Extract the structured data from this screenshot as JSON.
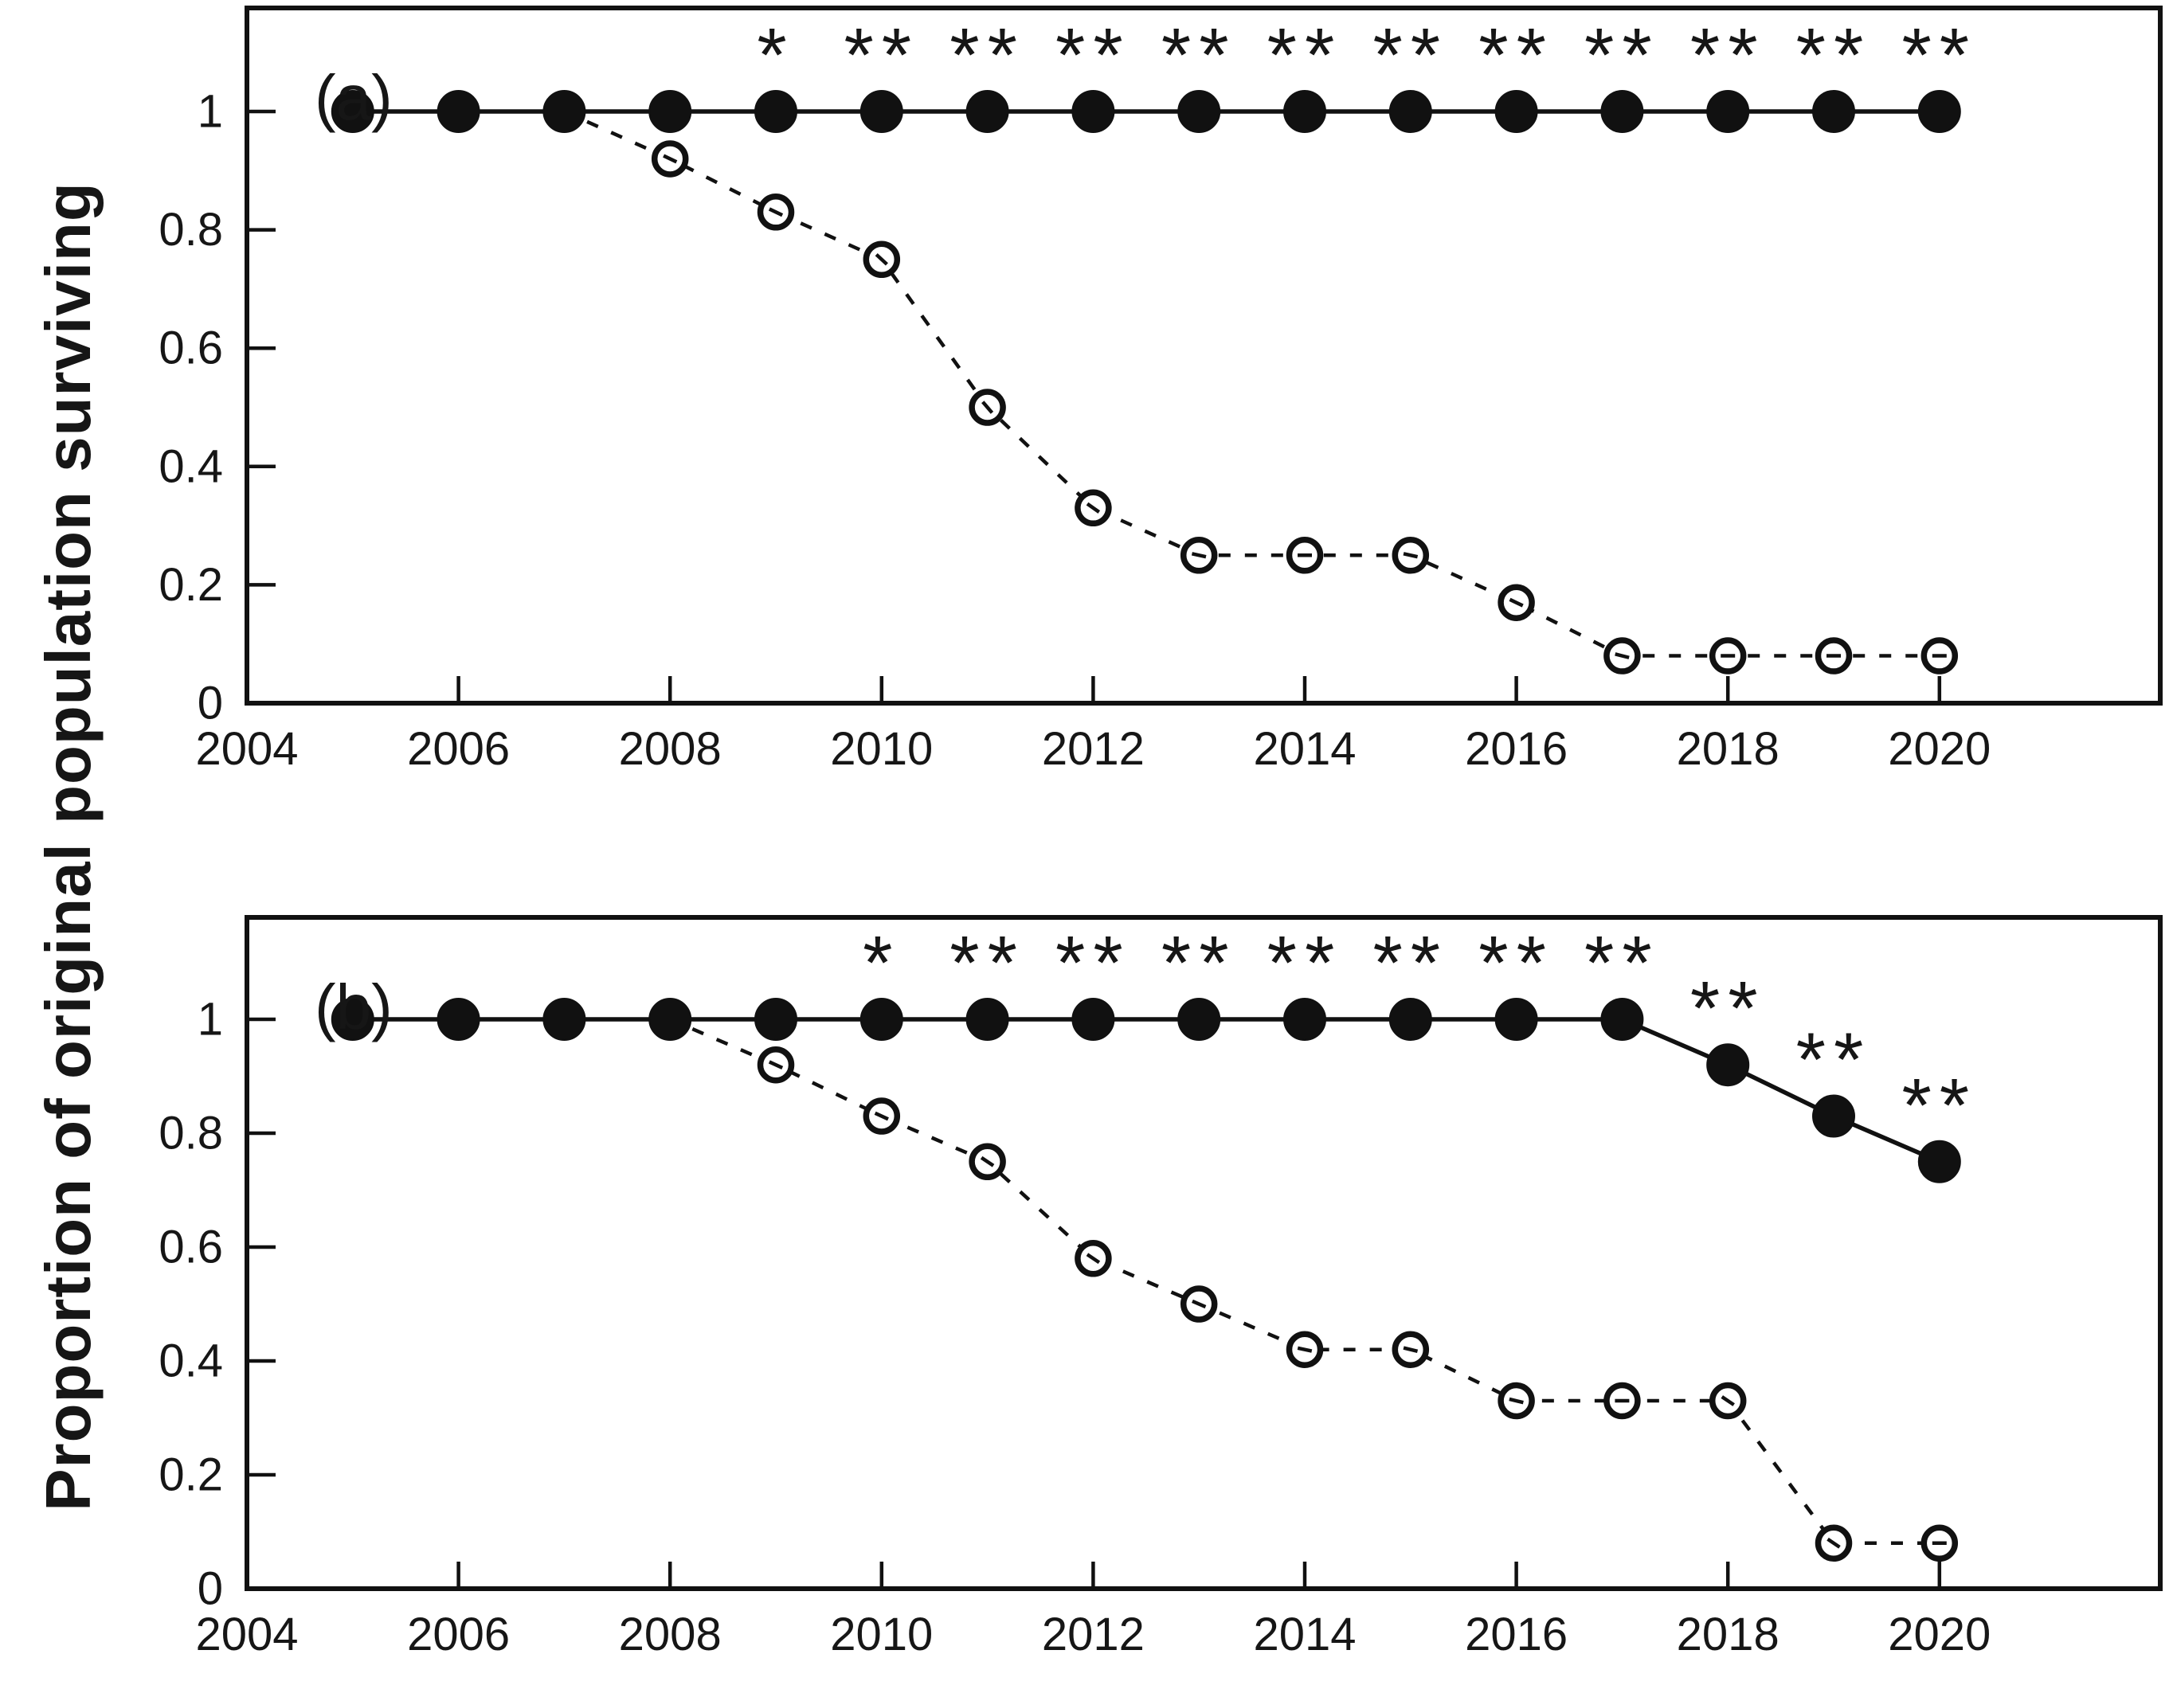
{
  "figure": {
    "ylabel": "Proportion of original population surviving",
    "background_color": "#ffffff",
    "ink_color": "#111111"
  },
  "chart_data": [
    {
      "type": "line",
      "panel_label": "(a)",
      "x": [
        2005,
        2006,
        2007,
        2008,
        2009,
        2010,
        2011,
        2012,
        2013,
        2014,
        2015,
        2016,
        2017,
        2018,
        2019,
        2020
      ],
      "series": [
        {
          "name": "filled-circles-solid-line",
          "marker": "filled-circle",
          "line_style": "solid",
          "values": [
            1,
            1,
            1,
            1,
            1,
            1,
            1,
            1,
            1,
            1,
            1,
            1,
            1,
            1,
            1,
            1
          ]
        },
        {
          "name": "open-circles-dashed-line",
          "marker": "open-circle",
          "line_style": "dashed",
          "values": [
            1,
            1,
            1,
            0.92,
            0.83,
            0.75,
            0.5,
            0.33,
            0.25,
            0.25,
            0.25,
            0.17,
            0.08,
            0.08,
            0.08,
            0.08
          ]
        }
      ],
      "significance_markers": [
        {
          "year": 2009,
          "label": "*"
        },
        {
          "year": 2010,
          "label": "**"
        },
        {
          "year": 2011,
          "label": "**"
        },
        {
          "year": 2012,
          "label": "**"
        },
        {
          "year": 2013,
          "label": "**"
        },
        {
          "year": 2014,
          "label": "**"
        },
        {
          "year": 2015,
          "label": "**"
        },
        {
          "year": 2016,
          "label": "**"
        },
        {
          "year": 2017,
          "label": "**"
        },
        {
          "year": 2018,
          "label": "**"
        },
        {
          "year": 2019,
          "label": "**"
        },
        {
          "year": 2020,
          "label": "**"
        }
      ],
      "xticks": [
        2004,
        2006,
        2008,
        2010,
        2012,
        2014,
        2016,
        2018,
        2020
      ],
      "xtick_labels": [
        "2004",
        "2006",
        "2008",
        "2010",
        "2012",
        "2014",
        "2016",
        "2018",
        "2020"
      ],
      "yticks": [
        1,
        0.8,
        0.6,
        0.4,
        0.2,
        0
      ],
      "ytick_labels": [
        "1",
        "0.8",
        "0.6",
        "0.4",
        "0.2",
        "0"
      ],
      "xlim": [
        2004,
        2022
      ],
      "ylim": [
        0,
        1.18
      ],
      "grid": false,
      "legend": "none"
    },
    {
      "type": "line",
      "panel_label": "(b)",
      "x": [
        2005,
        2006,
        2007,
        2008,
        2009,
        2010,
        2011,
        2012,
        2013,
        2014,
        2015,
        2016,
        2017,
        2018,
        2019,
        2020
      ],
      "series": [
        {
          "name": "filled-circles-solid-line",
          "marker": "filled-circle",
          "line_style": "solid",
          "values": [
            1,
            1,
            1,
            1,
            1,
            1,
            1,
            1,
            1,
            1,
            1,
            1,
            1,
            0.92,
            0.83,
            0.75
          ]
        },
        {
          "name": "open-circles-dashed-line",
          "marker": "open-circle",
          "line_style": "dashed",
          "values": [
            1,
            1,
            1,
            1,
            0.92,
            0.83,
            0.75,
            0.58,
            0.5,
            0.42,
            0.42,
            0.33,
            0.33,
            0.33,
            0.08,
            0.08
          ]
        }
      ],
      "significance_markers": [
        {
          "year": 2010,
          "label": "*"
        },
        {
          "year": 2011,
          "label": "**"
        },
        {
          "year": 2012,
          "label": "**"
        },
        {
          "year": 2013,
          "label": "**"
        },
        {
          "year": 2014,
          "label": "**"
        },
        {
          "year": 2015,
          "label": "**"
        },
        {
          "year": 2016,
          "label": "**"
        },
        {
          "year": 2017,
          "label": "**"
        },
        {
          "year": 2018,
          "label": "**"
        },
        {
          "year": 2019,
          "label": "**"
        },
        {
          "year": 2020,
          "label": "**"
        }
      ],
      "xticks": [
        2004,
        2006,
        2008,
        2010,
        2012,
        2014,
        2016,
        2018,
        2020
      ],
      "xtick_labels": [
        "2004",
        "2006",
        "2008",
        "2010",
        "2012",
        "2014",
        "2016",
        "2018",
        "2020"
      ],
      "yticks": [
        1,
        0.8,
        0.6,
        0.4,
        0.2,
        0
      ],
      "ytick_labels": [
        "1",
        "0.8",
        "0.6",
        "0.4",
        "0.2",
        "0"
      ],
      "xlim": [
        2004,
        2022
      ],
      "ylim": [
        0,
        1.18
      ],
      "grid": false,
      "legend": "none"
    }
  ]
}
